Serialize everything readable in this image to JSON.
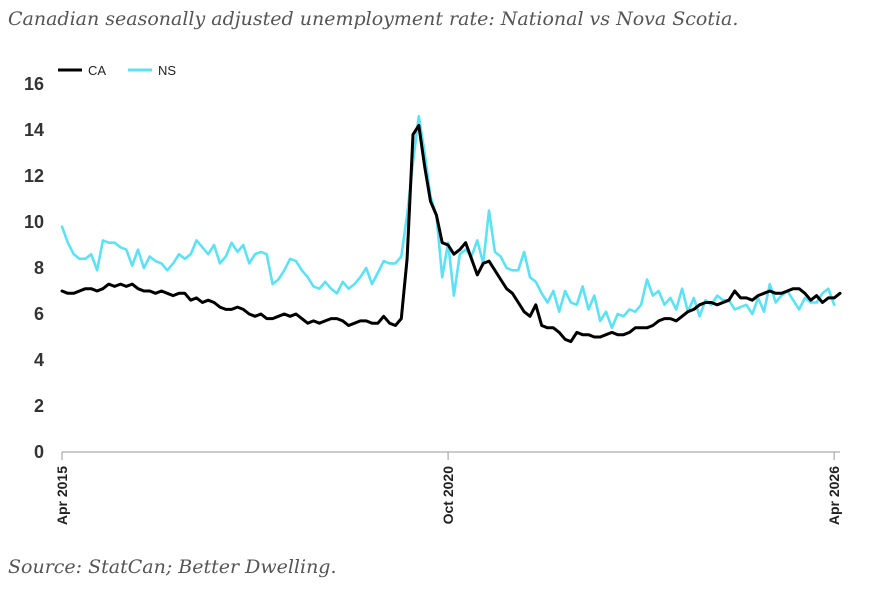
{
  "title": "Canadian seasonally adjusted unemployment rate: National vs Nova Scotia.",
  "source": "Source: StatCan; Better Dwelling.",
  "chart_data": {
    "type": "line",
    "ylim": [
      0,
      16
    ],
    "yticks": [
      "0",
      "2",
      "4",
      "6",
      "8",
      "10",
      "12",
      "14",
      "16"
    ],
    "xticks": [
      {
        "label": "Apr 2015",
        "index": 0
      },
      {
        "label": "Oct 2020",
        "index": 66
      },
      {
        "label": "Apr 2026",
        "index": 132
      }
    ],
    "legend_position": "top-left",
    "grid": false,
    "series": [
      {
        "name": "CA",
        "color": "#000000",
        "values": [
          7.0,
          6.9,
          6.9,
          7.0,
          7.1,
          7.1,
          7.0,
          7.1,
          7.3,
          7.2,
          7.3,
          7.2,
          7.3,
          7.1,
          7.0,
          7.0,
          6.9,
          7.0,
          6.9,
          6.8,
          6.9,
          6.9,
          6.6,
          6.7,
          6.5,
          6.6,
          6.5,
          6.3,
          6.2,
          6.2,
          6.3,
          6.2,
          6.0,
          5.9,
          6.0,
          5.8,
          5.8,
          5.9,
          6.0,
          5.9,
          6.0,
          5.8,
          5.6,
          5.7,
          5.6,
          5.7,
          5.8,
          5.8,
          5.7,
          5.5,
          5.6,
          5.7,
          5.7,
          5.6,
          5.6,
          5.9,
          5.6,
          5.5,
          5.8,
          8.4,
          13.8,
          14.2,
          12.4,
          10.9,
          10.3,
          9.1,
          9.0,
          8.6,
          8.8,
          9.1,
          8.4,
          7.7,
          8.2,
          8.3,
          7.9,
          7.5,
          7.1,
          6.9,
          6.5,
          6.1,
          5.9,
          6.4,
          5.5,
          5.4,
          5.4,
          5.2,
          4.9,
          4.8,
          5.2,
          5.1,
          5.1,
          5.0,
          5.0,
          5.1,
          5.2,
          5.1,
          5.1,
          5.2,
          5.4,
          5.4,
          5.4,
          5.5,
          5.7,
          5.8,
          5.8,
          5.7,
          5.9,
          6.1,
          6.2,
          6.4,
          6.5,
          6.5,
          6.4,
          6.5,
          6.6,
          7.0,
          6.7,
          6.7,
          6.6,
          6.8,
          6.9,
          7.0,
          6.9,
          6.9,
          7.0,
          7.1,
          7.1,
          6.9,
          6.6,
          6.8,
          6.5,
          6.7,
          6.7,
          6.9
        ]
      },
      {
        "name": "NS",
        "color": "#5ce1f5",
        "values": [
          9.8,
          9.1,
          8.6,
          8.4,
          8.4,
          8.6,
          7.9,
          9.2,
          9.1,
          9.1,
          8.9,
          8.8,
          8.1,
          8.8,
          8.0,
          8.5,
          8.3,
          8.2,
          7.9,
          8.2,
          8.6,
          8.4,
          8.6,
          9.2,
          8.9,
          8.6,
          9.0,
          8.2,
          8.5,
          9.1,
          8.7,
          9.0,
          8.2,
          8.6,
          8.7,
          8.6,
          7.3,
          7.5,
          7.9,
          8.4,
          8.3,
          7.9,
          7.6,
          7.2,
          7.1,
          7.4,
          7.1,
          6.9,
          7.4,
          7.1,
          7.3,
          7.6,
          8.0,
          7.3,
          7.8,
          8.3,
          8.2,
          8.2,
          8.5,
          10.3,
          12.6,
          14.6,
          13.0,
          11.1,
          10.3,
          7.6,
          9.1,
          6.8,
          8.6,
          8.8,
          8.5,
          9.2,
          8.2,
          10.5,
          8.7,
          8.5,
          8.0,
          7.9,
          7.9,
          8.7,
          7.6,
          7.4,
          6.9,
          6.5,
          7.0,
          6.1,
          7.0,
          6.5,
          6.4,
          7.2,
          6.2,
          6.8,
          5.7,
          6.1,
          5.4,
          6.0,
          5.9,
          6.2,
          6.1,
          6.4,
          7.5,
          6.8,
          7.0,
          6.4,
          6.7,
          6.2,
          7.1,
          6.1,
          6.7,
          5.9,
          6.6,
          6.4,
          6.8,
          6.6,
          6.6,
          6.2,
          6.3,
          6.4,
          6.0,
          6.7,
          6.1,
          7.3,
          6.5,
          6.8,
          7.0,
          6.6,
          6.2,
          6.7,
          6.5,
          6.5,
          6.9,
          7.1,
          6.4
        ]
      }
    ]
  }
}
